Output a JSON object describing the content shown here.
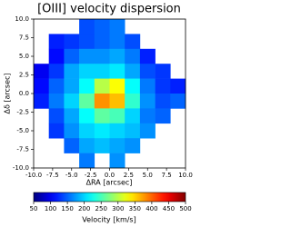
{
  "chart_data": {
    "type": "heatmap",
    "title": "[OIII] velocity dispersion",
    "xlabel": "ΔRA [arcsec]",
    "ylabel": "Δδ [arcsec]",
    "x": [
      -9,
      -7,
      -5,
      -3,
      -1,
      1,
      3,
      5,
      7,
      9
    ],
    "y": [
      9,
      7,
      5,
      3,
      1,
      -1,
      -3,
      -5,
      -7,
      -9
    ],
    "values": [
      [
        null,
        null,
        null,
        140,
        150,
        160,
        null,
        null,
        null,
        null
      ],
      [
        null,
        120,
        130,
        140,
        150,
        160,
        140,
        null,
        null,
        null
      ],
      [
        null,
        110,
        150,
        170,
        170,
        180,
        160,
        120,
        null,
        null
      ],
      [
        100,
        130,
        180,
        200,
        200,
        210,
        180,
        140,
        130,
        null
      ],
      [
        110,
        150,
        180,
        220,
        300,
        330,
        220,
        160,
        130,
        120
      ],
      [
        120,
        160,
        200,
        260,
        380,
        360,
        240,
        170,
        140,
        150
      ],
      [
        null,
        140,
        180,
        220,
        260,
        250,
        200,
        160,
        150,
        null
      ],
      [
        null,
        130,
        170,
        200,
        210,
        200,
        190,
        170,
        null,
        null
      ],
      [
        null,
        null,
        150,
        180,
        190,
        180,
        170,
        null,
        null,
        null
      ],
      [
        null,
        null,
        null,
        160,
        null,
        170,
        null,
        null,
        null,
        null
      ]
    ],
    "xlim": [
      -10,
      10
    ],
    "ylim": [
      -10,
      10
    ],
    "xticks": [
      {
        "value": -10,
        "label": "-10.0"
      },
      {
        "value": -7.5,
        "label": "-7.5"
      },
      {
        "value": -5,
        "label": "-5.0"
      },
      {
        "value": -2.5,
        "label": "-2.5"
      },
      {
        "value": 0,
        "label": "0.0"
      },
      2.5,
      {
        "value": 5,
        "label": "5.0"
      },
      7.5,
      {
        "value": 10,
        "label": "10.0"
      }
    ],
    "yticks": [
      {
        "value": -10,
        "label": "-10.0"
      },
      {
        "value": -7.5,
        "label": "-7.5"
      },
      {
        "value": -5,
        "label": "-5.0"
      },
      {
        "value": -2.5,
        "label": "-2.5"
      },
      {
        "value": 0,
        "label": "0.0"
      },
      2.5,
      {
        "value": 5,
        "label": "5.0"
      },
      7.5,
      {
        "value": 10,
        "label": "10.0"
      }
    ],
    "colormap": "jet",
    "colorbar": {
      "label": "Velocity [km/s]",
      "clim": [
        50,
        500
      ],
      "ticks": [
        50,
        100,
        150,
        200,
        250,
        300,
        350,
        400,
        450,
        500
      ]
    }
  }
}
